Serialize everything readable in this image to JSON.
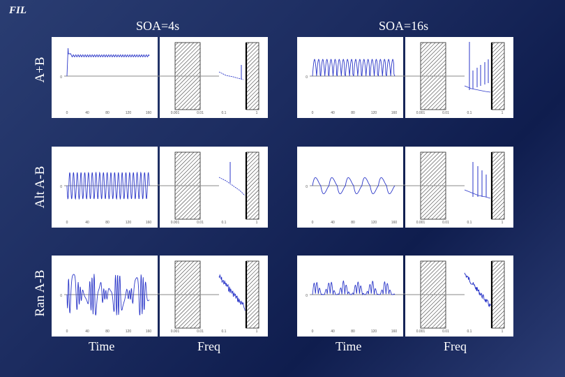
{
  "logo": "FIL",
  "columns": [
    "SOA=4s",
    "SOA=16s"
  ],
  "rows": [
    "A+B",
    "Alt A-B",
    "Ran A-B"
  ],
  "bottom_labels": [
    "Time",
    "Freq",
    "Time",
    "Freq"
  ],
  "time_axis": {
    "ticks": [
      "0",
      "40",
      "80",
      "120",
      "160"
    ],
    "zero_label": "0"
  },
  "freq_axis": {
    "ticks": [
      "0.001",
      "0.01",
      "0.1",
      "1"
    ]
  },
  "colors": {
    "signal": "#2a36c8",
    "baseline": "#8a8a8a",
    "hatch": "#222222"
  }
}
